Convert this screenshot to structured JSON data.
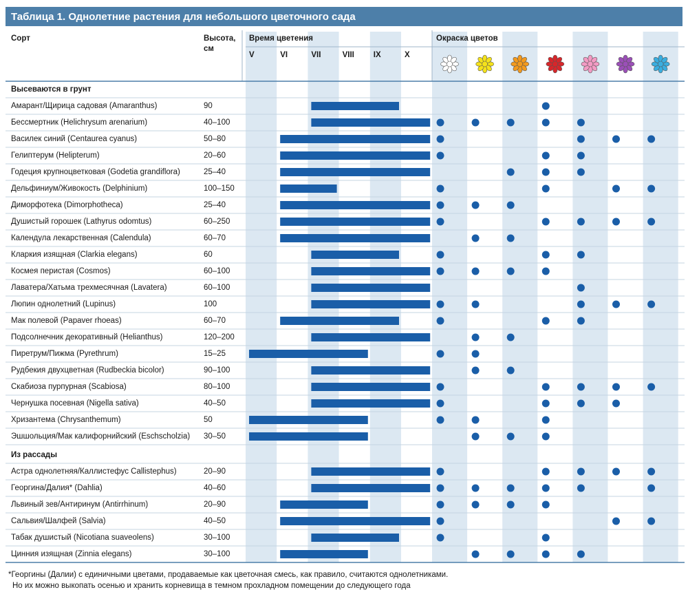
{
  "title": "Таблица 1. Однолетние растения для небольшого цветочного сада",
  "headers": {
    "name": "Сорт",
    "height": "Высота, см",
    "bloom": "Время цветения",
    "colors": "Окраска цветов"
  },
  "months": [
    "V",
    "VI",
    "VII",
    "VIII",
    "IX",
    "X"
  ],
  "month_range": [
    5,
    11
  ],
  "flower_colors": [
    "#ffffff",
    "#f5e21a",
    "#f39a1e",
    "#d8262a",
    "#f39bc4",
    "#9b4fb8",
    "#3aaee0"
  ],
  "bar_color": "#1a5ea8",
  "dot_color": "#1a5ea8",
  "sections": [
    {
      "title": "Высеваются в грунт",
      "rows": [
        {
          "name": "Амарант/Щирица садовая (Amaranthus)",
          "height": "90",
          "bloom": [
            7,
            10
          ],
          "colors": [
            false,
            false,
            false,
            true,
            false,
            false,
            false
          ]
        },
        {
          "name": "Бессмертник (Helichrysum arenarium)",
          "height": "40–100",
          "bloom": [
            7,
            11
          ],
          "colors": [
            true,
            true,
            true,
            true,
            true,
            false,
            false
          ]
        },
        {
          "name": "Василек синий (Centaurea cyanus)",
          "height": "50–80",
          "bloom": [
            6,
            11
          ],
          "colors": [
            true,
            false,
            false,
            false,
            true,
            true,
            true
          ]
        },
        {
          "name": "Гелиптерум (Helipterum)",
          "height": "20–60",
          "bloom": [
            6,
            11
          ],
          "colors": [
            true,
            false,
            false,
            true,
            true,
            false,
            false
          ]
        },
        {
          "name": "Годеция крупноцветковая (Godetia grandiflora)",
          "height": "25–40",
          "bloom": [
            6,
            11
          ],
          "colors": [
            false,
            false,
            true,
            true,
            true,
            false,
            false
          ]
        },
        {
          "name": "Дельфиниум/Живокость (Delphinium)",
          "height": "100–150",
          "bloom": [
            6,
            8
          ],
          "colors": [
            true,
            false,
            false,
            true,
            false,
            true,
            true
          ]
        },
        {
          "name": "Диморфотека (Dimorphotheca)",
          "height": "25–40",
          "bloom": [
            6,
            11
          ],
          "colors": [
            true,
            true,
            true,
            false,
            false,
            false,
            false
          ]
        },
        {
          "name": "Душистый горошек (Lathyrus odomtus)",
          "height": "60–250",
          "bloom": [
            6,
            11
          ],
          "colors": [
            true,
            false,
            false,
            true,
            true,
            true,
            true
          ]
        },
        {
          "name": "Календула лекарственная (Calendula)",
          "height": "60–70",
          "bloom": [
            6,
            11
          ],
          "colors": [
            false,
            true,
            true,
            false,
            false,
            false,
            false
          ]
        },
        {
          "name": "Кларкия изящная (Clarkia elegans)",
          "height": "60",
          "bloom": [
            7,
            10
          ],
          "colors": [
            true,
            false,
            false,
            true,
            true,
            false,
            false
          ]
        },
        {
          "name": "Космея перистая (Cosmos)",
          "height": "60–100",
          "bloom": [
            7,
            11
          ],
          "colors": [
            true,
            true,
            true,
            true,
            false,
            false,
            false
          ]
        },
        {
          "name": "Лаватера/Хатьма трехмесячная (Lavatera)",
          "height": "60–100",
          "bloom": [
            7,
            11
          ],
          "colors": [
            false,
            false,
            false,
            false,
            true,
            false,
            false
          ]
        },
        {
          "name": "Люпин однолетний (Lupinus)",
          "height": "100",
          "bloom": [
            7,
            11
          ],
          "colors": [
            true,
            true,
            false,
            false,
            true,
            true,
            true
          ]
        },
        {
          "name": "Мак полевой (Papaver rhoeas)",
          "height": "60–70",
          "bloom": [
            6,
            10
          ],
          "colors": [
            true,
            false,
            false,
            true,
            true,
            false,
            false
          ]
        },
        {
          "name": "Подсолнечник декоративный (Helianthus)",
          "height": "120–200",
          "bloom": [
            7,
            11
          ],
          "colors": [
            false,
            true,
            true,
            false,
            false,
            false,
            false
          ]
        },
        {
          "name": "Пиретрум/Пижма (Pyrethrum)",
          "height": "15–25",
          "bloom": [
            5,
            9
          ],
          "colors": [
            true,
            true,
            false,
            false,
            false,
            false,
            false
          ]
        },
        {
          "name": "Рудбекия двухцветная (Rudbeckia bicolor)",
          "height": "90–100",
          "bloom": [
            7,
            11
          ],
          "colors": [
            false,
            true,
            true,
            false,
            false,
            false,
            false
          ]
        },
        {
          "name": "Скабиоза пурпурная (Scabiosa)",
          "height": "80–100",
          "bloom": [
            7,
            11
          ],
          "colors": [
            true,
            false,
            false,
            true,
            true,
            true,
            true
          ]
        },
        {
          "name": "Чернушка посевная (Nigella sativa)",
          "height": "40–50",
          "bloom": [
            7,
            11
          ],
          "colors": [
            true,
            false,
            false,
            true,
            true,
            true,
            false
          ]
        },
        {
          "name": "Хризантема (Chrysanthemum)",
          "height": "50",
          "bloom": [
            5,
            9
          ],
          "colors": [
            true,
            true,
            false,
            true,
            false,
            false,
            false
          ]
        },
        {
          "name": "Эшшольция/Мак калифорнийский (Eschscholzia)",
          "height": "30–50",
          "bloom": [
            5,
            9
          ],
          "colors": [
            false,
            true,
            true,
            true,
            false,
            false,
            false
          ]
        }
      ]
    },
    {
      "title": "Из рассады",
      "rows": [
        {
          "name": "Астра однолетняя/Каллистефус Callistephus)",
          "height": "20–90",
          "bloom": [
            7,
            11
          ],
          "colors": [
            true,
            false,
            false,
            true,
            true,
            true,
            true
          ]
        },
        {
          "name": "Георгина/Далия* (Dahlia)",
          "height": "40–60",
          "bloom": [
            7,
            11
          ],
          "colors": [
            true,
            true,
            true,
            true,
            true,
            false,
            true
          ]
        },
        {
          "name": "Львиный зев/Антиринум (Antirrhinum)",
          "height": "20–90",
          "bloom": [
            6,
            9
          ],
          "colors": [
            true,
            true,
            true,
            true,
            false,
            false,
            false
          ]
        },
        {
          "name": "Сальвия/Шалфей (Salvia)",
          "height": "40–50",
          "bloom": [
            6,
            11
          ],
          "colors": [
            true,
            false,
            false,
            false,
            false,
            true,
            true
          ]
        },
        {
          "name": "Табак душистый (Nicotiana suaveolens)",
          "height": "30–100",
          "bloom": [
            7,
            10
          ],
          "colors": [
            true,
            false,
            false,
            true,
            false,
            false,
            false
          ]
        },
        {
          "name": "Цинния изящная (Zinnia elegans)",
          "height": "30–100",
          "bloom": [
            6,
            9
          ],
          "colors": [
            false,
            true,
            true,
            true,
            true,
            false,
            false
          ]
        }
      ]
    }
  ],
  "footnote": [
    "*Георгины (Далии) с единичными цветами, продаваемые как цветочная смесь, как правило, считаются однолетниками.",
    "Но их можно выкопать осенью и хранить корневища в темном прохладном помещении до следующего года"
  ]
}
